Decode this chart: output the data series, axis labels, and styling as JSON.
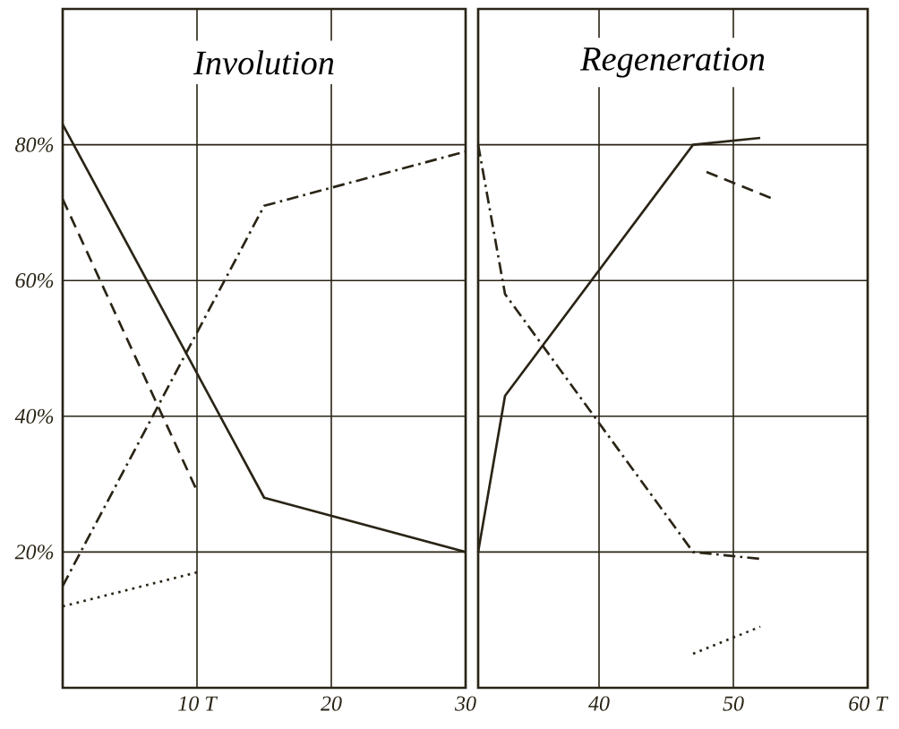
{
  "chart_data": [
    {
      "type": "line",
      "title": "Involution",
      "xlim": [
        0,
        30
      ],
      "ylim": [
        0,
        100
      ],
      "xticks": [
        {
          "value": 10,
          "label": "10 T"
        },
        20,
        30
      ],
      "yticks": [
        {
          "value": 20,
          "label": "20%"
        },
        {
          "value": 40,
          "label": "40%"
        },
        {
          "value": 60,
          "label": "60%"
        },
        {
          "value": 80,
          "label": "80%"
        }
      ],
      "grid": true,
      "marker": "none",
      "series": [
        {
          "color": "#2a2416",
          "line_style": "solid",
          "x": [
            0,
            15,
            30
          ],
          "values": [
            83,
            28,
            20
          ]
        },
        {
          "color": "#2a2416",
          "line_style": "dashed",
          "x": [
            0,
            10
          ],
          "values": [
            72,
            29
          ]
        },
        {
          "color": "#2a2416",
          "line_style": "dashdot",
          "x": [
            0,
            15,
            30
          ],
          "values": [
            15,
            71,
            79
          ]
        },
        {
          "color": "#2a2416",
          "line_style": "dotted",
          "x": [
            0,
            10
          ],
          "values": [
            12,
            17
          ]
        }
      ]
    },
    {
      "type": "line",
      "title": "Regeneration",
      "xlim": [
        31,
        60
      ],
      "ylim": [
        0,
        100
      ],
      "xticks": [
        40,
        50,
        {
          "value": 60,
          "label": "60 T"
        }
      ],
      "yticks": [
        20,
        40,
        60,
        80
      ],
      "tick_labels": "x",
      "grid": true,
      "marker": "none",
      "series": [
        {
          "color": "#2a2416",
          "line_style": "solid",
          "x": [
            31,
            33,
            47,
            52
          ],
          "values": [
            20,
            43,
            80,
            81
          ]
        },
        {
          "color": "#2a2416",
          "line_style": "dashdot",
          "x": [
            31,
            33,
            47,
            52
          ],
          "values": [
            80,
            58,
            20,
            19
          ]
        },
        {
          "color": "#2a2416",
          "line_style": "dashed",
          "x": [
            48,
            53
          ],
          "values": [
            76,
            72
          ]
        },
        {
          "color": "#2a2416",
          "line_style": "dotted",
          "x": [
            47,
            52
          ],
          "values": [
            5,
            9
          ]
        }
      ]
    }
  ]
}
